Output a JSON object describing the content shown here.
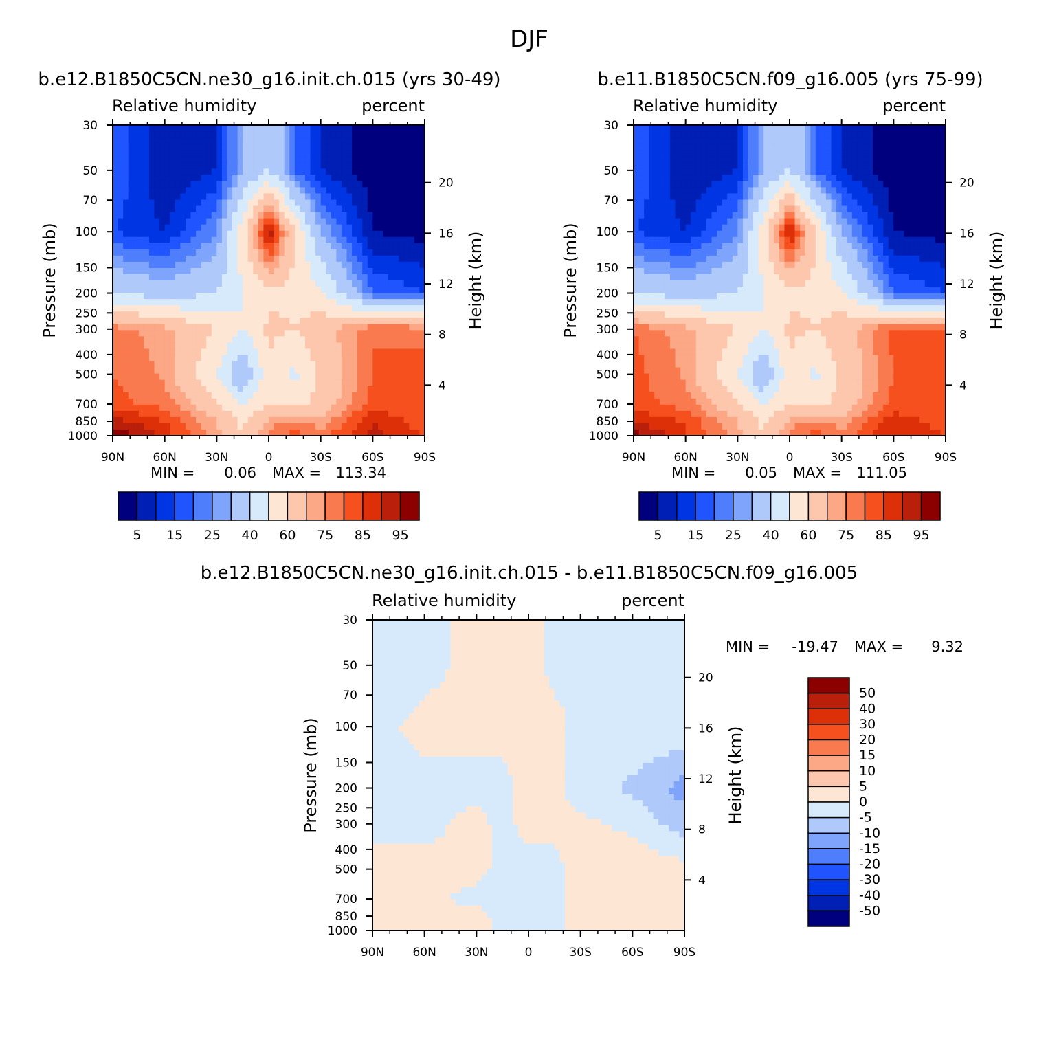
{
  "figure_title": "DJF",
  "palette": {
    "hum": [
      "#00007f",
      "#001fb4",
      "#0035e4",
      "#1f54ff",
      "#4e7efc",
      "#7ea4fc",
      "#aec9fa",
      "#d7eafb",
      "#fee6d5",
      "#fcc7ad",
      "#fca785",
      "#fa7a4f",
      "#f5501e",
      "#dd3009",
      "#b91f0b",
      "#8c0000"
    ],
    "diff": [
      "#00007f",
      "#001fb4",
      "#0035e4",
      "#1f54ff",
      "#4e7efc",
      "#7ea4fc",
      "#aec9fa",
      "#d7eafb",
      "#fee6d5",
      "#fcc7ad",
      "#fca785",
      "#fa7a4f",
      "#f5501e",
      "#dd3009",
      "#b91f0b",
      "#8c0000"
    ]
  },
  "panels": [
    {
      "title": "b.e12.B1850C5CN.ne30_g16.init.ch.015 (yrs 30-49)",
      "left_label": "Relative humidity",
      "right_label": "percent",
      "ylabel": "Pressure (mb)",
      "y2label": "Height (km)",
      "x_ticks": [
        "90N",
        "60N",
        "30N",
        "0",
        "30S",
        "60S",
        "90S"
      ],
      "p_ticks": [
        "30",
        "50",
        "70",
        "100",
        "150",
        "200",
        "250",
        "300",
        "400",
        "500",
        "700",
        "850",
        "1000"
      ],
      "h_ticks": [
        "20",
        "16",
        "12",
        "8",
        "4"
      ],
      "min_label": "MIN =",
      "min_value": "0.06",
      "max_label": "MAX =",
      "max_value": "113.34",
      "colorbar_labels": [
        "5",
        "15",
        "25",
        "40",
        "60",
        "75",
        "85",
        "95"
      ]
    },
    {
      "title": "b.e11.B1850C5CN.f09_g16.005 (yrs 75-99)",
      "left_label": "Relative humidity",
      "right_label": "percent",
      "ylabel": "Pressure (mb)",
      "y2label": "Height (km)",
      "x_ticks": [
        "90N",
        "60N",
        "30N",
        "0",
        "30S",
        "60S",
        "90S"
      ],
      "p_ticks": [
        "30",
        "50",
        "70",
        "100",
        "150",
        "200",
        "250",
        "300",
        "400",
        "500",
        "700",
        "850",
        "1000"
      ],
      "h_ticks": [
        "20",
        "16",
        "12",
        "8",
        "4"
      ],
      "min_label": "MIN =",
      "min_value": "0.05",
      "max_label": "MAX =",
      "max_value": "111.05",
      "colorbar_labels": [
        "5",
        "15",
        "25",
        "40",
        "60",
        "75",
        "85",
        "95"
      ]
    },
    {
      "title": "b.e12.B1850C5CN.ne30_g16.init.ch.015 - b.e11.B1850C5CN.f09_g16.005",
      "left_label": "Relative humidity",
      "right_label": "percent",
      "ylabel": "Pressure (mb)",
      "y2label": "Height (km)",
      "x_ticks": [
        "90N",
        "60N",
        "30N",
        "0",
        "30S",
        "60S",
        "90S"
      ],
      "p_ticks": [
        "30",
        "50",
        "70",
        "100",
        "150",
        "200",
        "250",
        "300",
        "400",
        "500",
        "700",
        "850",
        "1000"
      ],
      "h_ticks": [
        "20",
        "16",
        "12",
        "8",
        "4"
      ],
      "min_label": "MIN =",
      "min_value": "-19.47",
      "max_label": "MAX =",
      "max_value": "9.32",
      "colorbar_labels": [
        "50",
        "40",
        "30",
        "20",
        "15",
        "10",
        "5",
        "0",
        "-5",
        "-10",
        "-15",
        "-20",
        "-30",
        "-40",
        "-50"
      ]
    }
  ],
  "chart_data": [
    {
      "type": "heatmap",
      "title": "b.e12.B1850C5CN.ne30_g16.init.ch.015 (yrs 30-49)",
      "variable": "Relative humidity",
      "units": "percent",
      "xlabel": "",
      "ylabel": "Pressure (mb)",
      "y2label": "Height (km)",
      "x_range": [
        "90N",
        "90S"
      ],
      "y_range_mb": [
        1000,
        30
      ],
      "y_scale": "log",
      "contour_levels": [
        5,
        10,
        15,
        20,
        25,
        30,
        40,
        50,
        60,
        70,
        75,
        80,
        85,
        90,
        95
      ],
      "min": 0.06,
      "max": 113.34,
      "lat": [
        90,
        60,
        30,
        15,
        0,
        -15,
        -30,
        -60,
        -90
      ],
      "p": [
        1000,
        850,
        700,
        500,
        300,
        200,
        100,
        50
      ],
      "z": [
        [
          100,
          88,
          72,
          60,
          78,
          82,
          78,
          92,
          85
        ],
        [
          92,
          85,
          70,
          58,
          72,
          76,
          72,
          90,
          82
        ],
        [
          82,
          78,
          62,
          48,
          60,
          56,
          64,
          82,
          80
        ],
        [
          80,
          74,
          50,
          28,
          58,
          48,
          62,
          80,
          82
        ],
        [
          78,
          72,
          60,
          50,
          62,
          60,
          66,
          80,
          78
        ],
        [
          40,
          35,
          40,
          50,
          58,
          58,
          52,
          20,
          15
        ],
        [
          15,
          10,
          25,
          55,
          95,
          60,
          30,
          5,
          3
        ],
        [
          20,
          5,
          10,
          30,
          40,
          20,
          10,
          2,
          1
        ]
      ]
    },
    {
      "type": "heatmap",
      "title": "b.e11.B1850C5CN.f09_g16.005 (yrs 75-99)",
      "variable": "Relative humidity",
      "units": "percent",
      "xlabel": "",
      "ylabel": "Pressure (mb)",
      "y2label": "Height (km)",
      "x_range": [
        "90N",
        "90S"
      ],
      "y_range_mb": [
        1000,
        30
      ],
      "y_scale": "log",
      "contour_levels": [
        5,
        10,
        15,
        20,
        25,
        30,
        40,
        50,
        60,
        70,
        75,
        80,
        85,
        90,
        95
      ],
      "min": 0.05,
      "max": 111.05,
      "lat": [
        90,
        60,
        30,
        15,
        0,
        -15,
        -30,
        -60,
        -90
      ],
      "p": [
        1000,
        850,
        700,
        500,
        300,
        200,
        100,
        50
      ],
      "z": [
        [
          98,
          86,
          72,
          60,
          78,
          82,
          78,
          90,
          85
        ],
        [
          90,
          84,
          70,
          58,
          72,
          76,
          72,
          88,
          82
        ],
        [
          82,
          78,
          62,
          48,
          60,
          56,
          64,
          82,
          80
        ],
        [
          82,
          74,
          50,
          28,
          58,
          48,
          62,
          80,
          84
        ],
        [
          80,
          72,
          60,
          50,
          62,
          60,
          66,
          82,
          80
        ],
        [
          40,
          35,
          40,
          50,
          58,
          58,
          52,
          20,
          15
        ],
        [
          15,
          10,
          25,
          55,
          93,
          60,
          30,
          5,
          3
        ],
        [
          20,
          5,
          10,
          30,
          40,
          20,
          10,
          2,
          1
        ]
      ]
    },
    {
      "type": "heatmap",
      "title": "b.e12.B1850C5CN.ne30_g16.init.ch.015 - b.e11.B1850C5CN.f09_g16.005",
      "variable": "Relative humidity",
      "units": "percent",
      "xlabel": "",
      "ylabel": "Pressure (mb)",
      "y2label": "Height (km)",
      "x_range": [
        "90N",
        "90S"
      ],
      "y_range_mb": [
        1000,
        30
      ],
      "y_scale": "log",
      "contour_levels": [
        -50,
        -40,
        -30,
        -20,
        -15,
        -10,
        -5,
        0,
        5,
        10,
        15,
        20,
        30,
        40,
        50
      ],
      "min": -19.47,
      "max": 9.32,
      "lat": [
        90,
        60,
        30,
        15,
        0,
        -15,
        -30,
        -60,
        -90
      ],
      "p": [
        1000,
        850,
        700,
        500,
        300,
        200,
        100,
        50
      ],
      "z": [
        [
          2,
          1,
          1,
          -1,
          -1,
          -1,
          2,
          2,
          2
        ],
        [
          2,
          1,
          1,
          -1,
          -1,
          -1,
          2,
          2,
          3
        ],
        [
          3,
          1,
          -1,
          -1,
          -1,
          -1,
          2,
          1,
          2
        ],
        [
          1,
          1,
          1,
          -1,
          -1,
          -1,
          2,
          3,
          2
        ],
        [
          -1,
          -1,
          1,
          -1,
          1,
          1,
          1,
          -1,
          -8
        ],
        [
          -1,
          -1,
          -1,
          -1,
          1,
          1,
          -2,
          -6,
          -12
        ],
        [
          -1,
          1,
          1,
          1,
          3,
          1,
          -1,
          -1,
          -1
        ],
        [
          -3,
          -1,
          1,
          1,
          1,
          -1,
          -1,
          -1,
          -1
        ]
      ]
    }
  ]
}
